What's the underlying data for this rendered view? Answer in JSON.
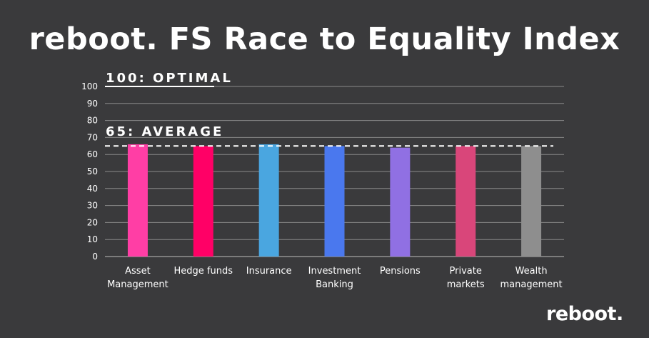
{
  "title": "reboot. FS Race to Equality Index",
  "logo": "reboot.",
  "reference_lines": {
    "optimal": {
      "label": "100: OPTIMAL",
      "value": 100
    },
    "average": {
      "label": "65: AVERAGE",
      "value": 65
    }
  },
  "chart_data": {
    "type": "bar",
    "title": "reboot. FS Race to Equality Index",
    "categories": [
      [
        "Asset",
        "Management"
      ],
      [
        "Hedge funds"
      ],
      [
        "Insurance"
      ],
      [
        "Investment",
        "Banking"
      ],
      [
        "Pensions"
      ],
      [
        "Private",
        "markets"
      ],
      [
        "Wealth",
        "management"
      ]
    ],
    "values": [
      66,
      65,
      66,
      65,
      64,
      65,
      65
    ],
    "colors": [
      "#ff3ea5",
      "#ff0066",
      "#4aa6e0",
      "#4a78ee",
      "#9070e3",
      "#d9467a",
      "#8e8e8e"
    ],
    "ylim": [
      0,
      100
    ],
    "yticks": [
      0,
      10,
      20,
      30,
      40,
      50,
      60,
      70,
      80,
      90,
      100
    ],
    "grid": true,
    "xlabel": "",
    "ylabel": ""
  }
}
